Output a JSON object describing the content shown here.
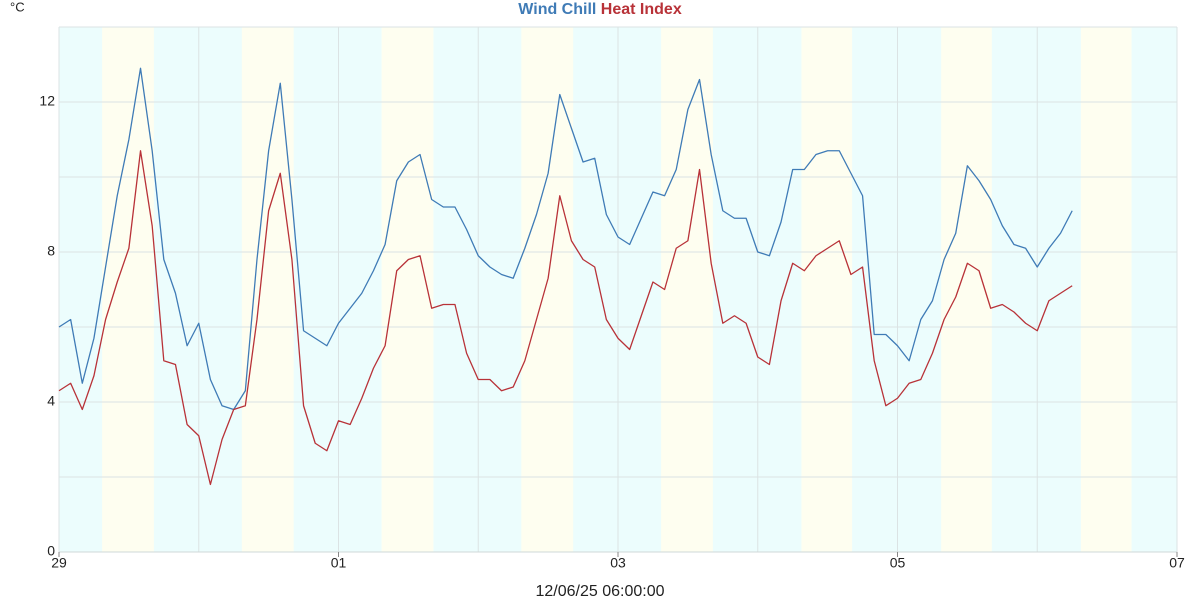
{
  "chart_data": {
    "type": "line",
    "ylabel": "°C",
    "subtitle": "12/06/25 06:00:00",
    "x": [
      0,
      2,
      4,
      6,
      8,
      10,
      12,
      14,
      16,
      18,
      20,
      22,
      24,
      26,
      28,
      30,
      32,
      34,
      36,
      38,
      40,
      42,
      44,
      46,
      48,
      50,
      52,
      54,
      56,
      58,
      60,
      62,
      64,
      66,
      68,
      70,
      72,
      74,
      76,
      78,
      80,
      82,
      84,
      86,
      88,
      90,
      92,
      94,
      96,
      98,
      100,
      102,
      104,
      106,
      108,
      110,
      112,
      114,
      116,
      118,
      120,
      122,
      124,
      126,
      128,
      130,
      132,
      134,
      136,
      138,
      140,
      142,
      144,
      146,
      148,
      150,
      152,
      154,
      156,
      158,
      160,
      162,
      164,
      166,
      168,
      170,
      172,
      174
    ],
    "series": [
      {
        "name": "Wind Chill",
        "color": "#3f7bb6",
        "values": [
          6.0,
          6.2,
          4.5,
          5.7,
          7.6,
          9.5,
          11.0,
          12.9,
          10.7,
          7.8,
          6.9,
          5.5,
          6.1,
          4.6,
          3.9,
          3.8,
          4.3,
          7.8,
          10.7,
          12.5,
          9.4,
          5.9,
          5.7,
          5.5,
          6.1,
          6.5,
          6.9,
          7.5,
          8.2,
          9.9,
          10.4,
          10.6,
          9.4,
          9.2,
          9.2,
          8.6,
          7.9,
          7.6,
          7.4,
          7.3,
          8.1,
          9.0,
          10.1,
          12.2,
          11.3,
          10.4,
          10.5,
          9.0,
          8.4,
          8.2,
          8.9,
          9.6,
          9.5,
          10.2,
          11.8,
          12.6,
          10.6,
          9.1,
          8.9,
          8.9,
          8.0,
          7.9,
          8.8,
          10.2,
          10.2,
          10.6,
          10.7,
          10.7,
          10.1,
          9.5,
          5.8,
          5.8,
          5.5,
          5.1,
          6.2,
          6.7,
          7.8,
          8.5,
          10.3,
          9.9,
          9.4,
          8.7,
          8.2,
          8.1,
          7.6,
          8.1,
          8.5,
          9.1
        ]
      },
      {
        "name": "Heat Index",
        "color": "#b83238",
        "values": [
          4.3,
          4.5,
          3.8,
          4.7,
          6.2,
          7.2,
          8.1,
          10.7,
          8.7,
          5.1,
          5.0,
          3.4,
          3.1,
          1.8,
          3.0,
          3.8,
          3.9,
          6.2,
          9.1,
          10.1,
          7.8,
          3.9,
          2.9,
          2.7,
          3.5,
          3.4,
          4.1,
          4.9,
          5.5,
          7.5,
          7.8,
          7.9,
          6.5,
          6.6,
          6.6,
          5.3,
          4.6,
          4.6,
          4.3,
          4.4,
          5.1,
          6.2,
          7.3,
          9.5,
          8.3,
          7.8,
          7.6,
          6.2,
          5.7,
          5.4,
          6.3,
          7.2,
          7.0,
          8.1,
          8.3,
          10.2,
          7.7,
          6.1,
          6.3,
          6.1,
          5.2,
          5.0,
          6.7,
          7.7,
          7.5,
          7.9,
          8.1,
          8.3,
          7.4,
          7.6,
          5.1,
          3.9,
          4.1,
          4.5,
          4.6,
          5.3,
          6.2,
          6.8,
          7.7,
          7.5,
          6.5,
          6.6,
          6.4,
          6.1,
          5.9,
          6.7,
          6.9,
          7.1
        ]
      }
    ],
    "xlim": [
      0,
      192
    ],
    "xticks": [
      {
        "value": 0,
        "label": "29"
      },
      {
        "value": 48,
        "label": "01"
      },
      {
        "value": 96,
        "label": "03"
      },
      {
        "value": 144,
        "label": "05"
      },
      {
        "value": 192,
        "label": "07"
      }
    ],
    "xgrid": [
      0,
      24,
      48,
      72,
      96,
      120,
      144,
      168,
      192
    ],
    "ylim": [
      0,
      14
    ],
    "yticks": [
      0,
      4,
      8,
      12
    ],
    "ygrid": [
      2,
      4,
      6,
      8,
      10,
      12,
      14
    ],
    "night_color": "#ecfdfd",
    "day_color": "#fefef0",
    "daylight": [
      [
        7.4,
        16.3
      ],
      [
        31.4,
        40.3
      ],
      [
        55.4,
        64.3
      ],
      [
        79.4,
        88.3
      ],
      [
        103.4,
        112.3
      ],
      [
        127.5,
        136.2
      ],
      [
        151.5,
        160.2
      ],
      [
        175.5,
        184.2
      ]
    ]
  }
}
